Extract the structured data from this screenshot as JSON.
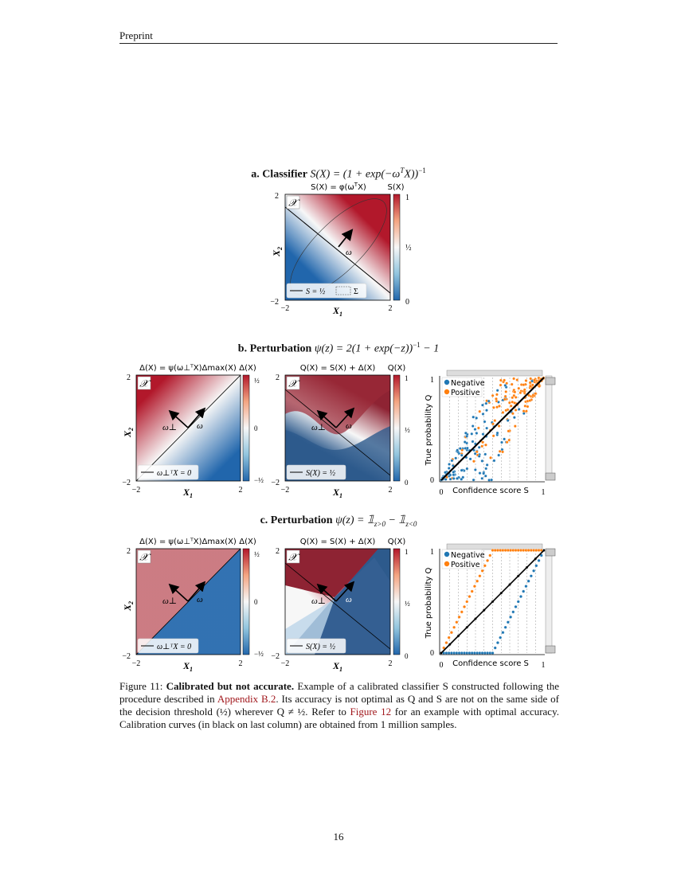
{
  "header": {
    "label": "Preprint"
  },
  "figure_a": {
    "title_bold": "a. Classifier",
    "title_eq": "S(X) = (1 + exp(−ω",
    "title_eq_sup": "T",
    "title_eq_end": "X))",
    "title_eq_exp": "−1",
    "plot_label": "S(X) = φ(ω",
    "plot_label_sup": "T",
    "plot_label_end": "X)",
    "cbar_label": "S(X)",
    "space_label": "𝒳",
    "omega_label": "ω",
    "xlabel": "X",
    "xlabel_sub": "1",
    "ylabel": "X",
    "ylabel_sub": "2",
    "ticks_x": [
      "−2",
      "2"
    ],
    "ticks_y": [
      "−2",
      "2"
    ],
    "cbar_ticks": [
      "1",
      "½",
      "0"
    ],
    "legend_line": "S = ½",
    "legend_box": "Σ"
  },
  "figure_b": {
    "title_bold": "b. Perturbation",
    "title_eq": "ψ(z) = 2(1 + exp(−z))",
    "title_eq_exp": "−1",
    "title_eq_end": " − 1",
    "left_label": "Δ(X) = ψ(ω⊥ᵀX)Δmax(X)",
    "left_cbar_label": "Δ(X)",
    "left_cbar_ticks": [
      "½",
      "0",
      "−½"
    ],
    "left_legend": "ω⊥ᵀX = 0",
    "mid_label": "Q(X) = S(X) + Δ(X)",
    "mid_cbar_label": "Q(X)",
    "mid_cbar_ticks": [
      "1",
      "½",
      "0"
    ],
    "mid_legend": "S(X) = ½",
    "omega_perp": "ω⊥",
    "omega": "ω",
    "space_label": "𝒳",
    "xlabel": "X",
    "xlabel_sub": "1",
    "ylabel": "X",
    "ylabel_sub": "2",
    "ticks": [
      "−2",
      "2"
    ],
    "scatter_xlabel": "Confidence score S",
    "scatter_ylabel": "True probability Q",
    "scatter_ticks": [
      "0",
      "1"
    ],
    "legend_negative": "Negative",
    "legend_positive": "Positive"
  },
  "figure_c": {
    "title_bold": "c. Perturbation",
    "title_eq": "ψ(z) = 𝟙",
    "title_sub1": "z>0",
    "title_mid": " − 𝟙",
    "title_sub2": "z<0",
    "left_label": "Δ(X) = ψ(ω⊥ᵀX)Δmax(X)",
    "left_cbar_label": "Δ(X)",
    "left_cbar_ticks": [
      "½",
      "0",
      "−½"
    ],
    "left_legend": "ω⊥ᵀX = 0",
    "mid_label": "Q(X) = S(X) + Δ(X)",
    "mid_cbar_label": "Q(X)",
    "mid_cbar_ticks": [
      "1",
      "½",
      "0"
    ],
    "mid_legend": "S(X) = ½",
    "omega_perp": "ω⊥",
    "omega": "ω",
    "space_label": "𝒳",
    "xlabel": "X",
    "xlabel_sub": "1",
    "ylabel": "X",
    "ylabel_sub": "2",
    "ticks": [
      "−2",
      "2"
    ],
    "scatter_xlabel": "Confidence score S",
    "scatter_ylabel": "True probability Q",
    "scatter_ticks": [
      "0",
      "1"
    ],
    "legend_negative": "Negative",
    "legend_positive": "Positive"
  },
  "caption": {
    "prefix": "Figure 11: ",
    "bold": "Calibrated but not accurate.",
    "part1": " Example of a calibrated classifier S constructed following the procedure described in ",
    "link1": "Appendix B.2",
    "part2": ". Its accuracy is not optimal as Q and S are not on the same side of the decision threshold (½) wherever Q ≠ ½. Refer to ",
    "link2": "Figure 12",
    "part3": " for an example with optimal accuracy. Calibration curves (in black on last column) are obtained from 1 million samples."
  },
  "page_number": "16",
  "colors": {
    "red": "#b2182b",
    "white": "#f7f7f7",
    "blue": "#2166ac",
    "negative": "#1f77b4",
    "positive": "#ff7f0e"
  },
  "chart_data": [
    {
      "type": "heatmap",
      "title": "a. Classifier S(X) = (1 + exp(−ωᵀX))⁻¹",
      "xlabel": "X1",
      "ylabel": "X2",
      "xlim": [
        -2,
        2
      ],
      "ylim": [
        -2,
        2
      ],
      "colorbar": "S(X)",
      "clim": [
        0,
        1
      ]
    },
    {
      "type": "heatmap",
      "title": "Δ(X) = ψ(ω⊥ᵀX)Δmax(X)",
      "xlim": [
        -2,
        2
      ],
      "ylim": [
        -2,
        2
      ],
      "clim": [
        -0.5,
        0.5
      ]
    },
    {
      "type": "heatmap",
      "title": "Q(X) = S(X) + Δ(X)",
      "xlim": [
        -2,
        2
      ],
      "ylim": [
        -2,
        2
      ],
      "clim": [
        0,
        1
      ]
    },
    {
      "type": "scatter",
      "xlabel": "Confidence score S",
      "ylabel": "True probability Q",
      "xlim": [
        0,
        1
      ],
      "ylim": [
        0,
        1
      ],
      "series": [
        {
          "name": "Negative"
        },
        {
          "name": "Positive"
        }
      ],
      "calibration_line": [
        [
          0,
          0
        ],
        [
          1,
          1
        ]
      ]
    },
    {
      "type": "scatter",
      "xlabel": "Confidence score S",
      "ylabel": "True probability Q",
      "xlim": [
        0,
        1
      ],
      "ylim": [
        0,
        1
      ],
      "series": [
        {
          "name": "Negative"
        },
        {
          "name": "Positive"
        }
      ],
      "calibration_line": [
        [
          0,
          0
        ],
        [
          1,
          1
        ]
      ]
    }
  ]
}
